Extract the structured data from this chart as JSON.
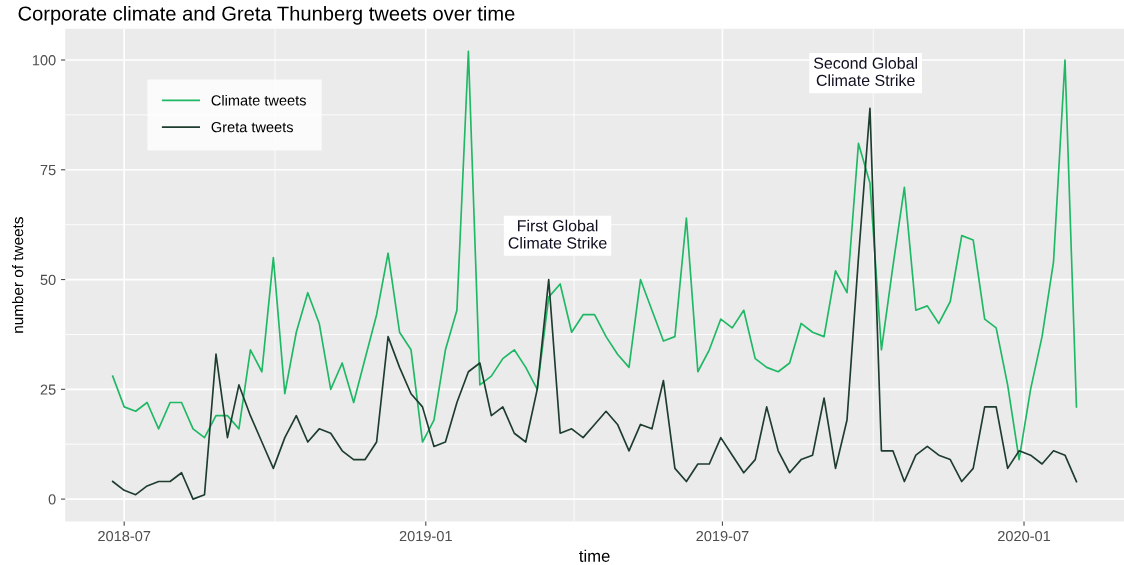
{
  "chart_data": {
    "type": "line",
    "title": "Corporate climate and Greta Thunberg tweets over time",
    "xlabel": "time",
    "ylabel": "number of tweets",
    "x": [
      "2018-06-24",
      "2018-07-01",
      "2018-07-08",
      "2018-07-15",
      "2018-07-22",
      "2018-07-29",
      "2018-08-05",
      "2018-08-12",
      "2018-08-19",
      "2018-08-26",
      "2018-09-02",
      "2018-09-09",
      "2018-09-16",
      "2018-09-23",
      "2018-09-30",
      "2018-10-07",
      "2018-10-14",
      "2018-10-21",
      "2018-10-28",
      "2018-11-04",
      "2018-11-11",
      "2018-11-18",
      "2018-11-25",
      "2018-12-02",
      "2018-12-09",
      "2018-12-16",
      "2018-12-23",
      "2018-12-30",
      "2019-01-06",
      "2019-01-13",
      "2019-01-20",
      "2019-01-27",
      "2019-02-03",
      "2019-02-10",
      "2019-02-17",
      "2019-02-24",
      "2019-03-03",
      "2019-03-10",
      "2019-03-17",
      "2019-03-24",
      "2019-03-31",
      "2019-04-07",
      "2019-04-14",
      "2019-04-21",
      "2019-04-28",
      "2019-05-05",
      "2019-05-12",
      "2019-05-19",
      "2019-05-26",
      "2019-06-02",
      "2019-06-09",
      "2019-06-16",
      "2019-06-23",
      "2019-06-30",
      "2019-07-07",
      "2019-07-14",
      "2019-07-21",
      "2019-07-28",
      "2019-08-04",
      "2019-08-11",
      "2019-08-18",
      "2019-08-25",
      "2019-09-01",
      "2019-09-08",
      "2019-09-15",
      "2019-09-22",
      "2019-09-29",
      "2019-10-06",
      "2019-10-13",
      "2019-10-20",
      "2019-10-27",
      "2019-11-03",
      "2019-11-10",
      "2019-11-17",
      "2019-11-24",
      "2019-12-01",
      "2019-12-08",
      "2019-12-15",
      "2019-12-22",
      "2019-12-29",
      "2020-01-05",
      "2020-01-12",
      "2020-01-19",
      "2020-01-26",
      "2020-02-02"
    ],
    "series": [
      {
        "name": "Climate tweets",
        "color": "#1fb865",
        "values": [
          28,
          21,
          20,
          22,
          16,
          22,
          22,
          16,
          14,
          19,
          19,
          16,
          34,
          29,
          55,
          24,
          38,
          47,
          40,
          25,
          31,
          22,
          32,
          42,
          56,
          38,
          34,
          13,
          18,
          34,
          43,
          102,
          26,
          28,
          32,
          34,
          30,
          25,
          46,
          49,
          38,
          42,
          42,
          37,
          33,
          30,
          50,
          43,
          36,
          37,
          64,
          29,
          34,
          41,
          39,
          43,
          32,
          30,
          29,
          31,
          40,
          38,
          37,
          52,
          47,
          81,
          72,
          34,
          53,
          71,
          43,
          44,
          40,
          45,
          60,
          59,
          41,
          39,
          26,
          9,
          25,
          37,
          54,
          100,
          21
        ]
      },
      {
        "name": "Greta tweets",
        "color": "#1e3d2f",
        "values": [
          4,
          2,
          1,
          3,
          4,
          4,
          6,
          0,
          1,
          33,
          14,
          26,
          19,
          13,
          7,
          14,
          19,
          13,
          16,
          15,
          11,
          9,
          9,
          13,
          37,
          30,
          24,
          21,
          12,
          13,
          22,
          29,
          31,
          19,
          21,
          15,
          13,
          25,
          50,
          15,
          16,
          14,
          17,
          20,
          17,
          11,
          17,
          16,
          27,
          7,
          4,
          8,
          8,
          14,
          10,
          6,
          9,
          21,
          11,
          6,
          9,
          10,
          23,
          7,
          18,
          55,
          89,
          11,
          11,
          4,
          10,
          12,
          10,
          9,
          4,
          7,
          21,
          21,
          7,
          11,
          10,
          8,
          11,
          10,
          4
        ]
      }
    ],
    "xlim": [
      "2018-05-26",
      "2020-03-02"
    ],
    "xticks": [
      {
        "value": "2018-07-01",
        "label": "2018-07"
      },
      {
        "value": "2019-01-01",
        "label": "2019-01"
      },
      {
        "value": "2019-07-01",
        "label": "2019-07"
      },
      {
        "value": "2020-01-01",
        "label": "2020-01"
      }
    ],
    "ylim": [
      -5.1,
      107.1
    ],
    "yticks": [
      0,
      25,
      50,
      75,
      100
    ],
    "annotations": [
      "First Global\nClimate Strike",
      "Second Global\nClimate Strike"
    ],
    "grid": true,
    "legend": "top left",
    "marker": "none",
    "line_style": "solid"
  }
}
